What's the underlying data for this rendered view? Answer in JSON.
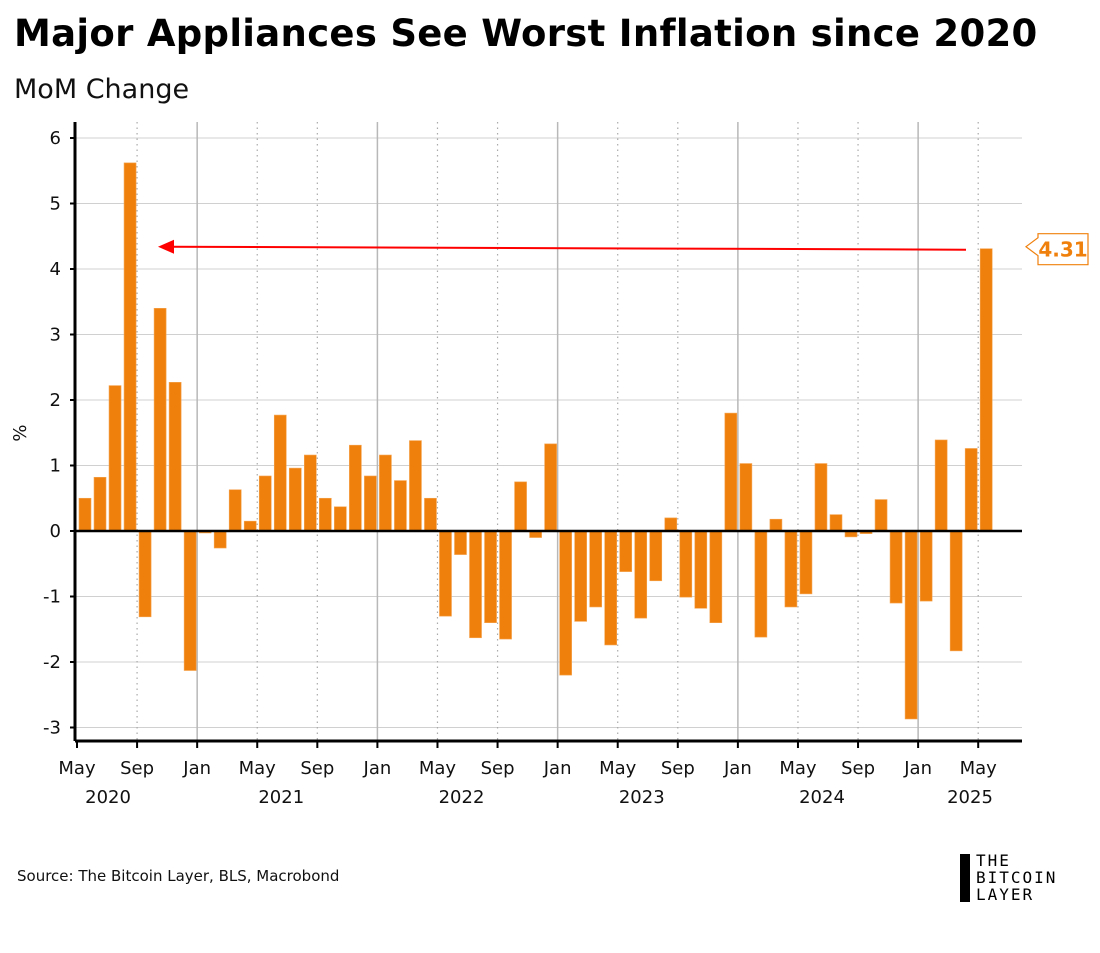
{
  "title": "Major Appliances See Worst Inflation since 2020",
  "subtitle": "MoM Change",
  "source": "Source: The Bitcoin Layer, BLS, Macrobond",
  "logo": {
    "line1": "THE",
    "line2": "BITCOIN",
    "line3": "LAYER"
  },
  "chart_data": {
    "type": "bar",
    "title": "Major Appliances See Worst Inflation since 2020",
    "subtitle": "MoM Change",
    "xlabel": "",
    "ylabel": "%",
    "ylim": [
      -3.2,
      6.25
    ],
    "yticks": [
      "6",
      "5",
      "4",
      "3",
      "2",
      "1",
      "0",
      "-1",
      "-2",
      "-3"
    ],
    "ytick_values": [
      6,
      5,
      4,
      3,
      2,
      1,
      0,
      -1,
      -2,
      -3
    ],
    "start": "2020-05",
    "xtick_labels": [
      "May",
      "Sep",
      "Jan",
      "May",
      "Sep",
      "Jan",
      "May",
      "Sep",
      "Jan",
      "May",
      "Sep",
      "Jan",
      "May",
      "Sep",
      "Jan",
      "May"
    ],
    "year_labels": [
      "2020",
      "2021",
      "2022",
      "2023",
      "2024",
      "2025"
    ],
    "color": "#f0800c",
    "values": [
      0.5,
      0.82,
      2.22,
      5.62,
      -1.31,
      3.4,
      2.27,
      -2.13,
      -0.03,
      -0.26,
      0.63,
      0.15,
      0.84,
      1.77,
      0.96,
      1.16,
      0.5,
      0.37,
      1.31,
      0.84,
      1.16,
      0.77,
      1.38,
      0.5,
      -1.3,
      -0.36,
      -1.63,
      -1.4,
      -1.65,
      0.75,
      -0.1,
      1.33,
      -2.2,
      -1.38,
      -1.16,
      -1.74,
      -0.62,
      -1.33,
      -0.76,
      0.2,
      -1.01,
      -1.18,
      -1.4,
      1.8,
      1.03,
      -1.62,
      0.18,
      -1.16,
      -0.96,
      1.03,
      0.25,
      -0.09,
      -0.04,
      0.48,
      -1.1,
      -2.87,
      -1.07,
      1.39,
      -1.83,
      1.26,
      4.31
    ],
    "annotation": {
      "label": "4.31",
      "value": 4.31,
      "arrow_color": "#ff0000",
      "arrow_from": "2025-05",
      "arrow_to": "2020-10"
    }
  }
}
